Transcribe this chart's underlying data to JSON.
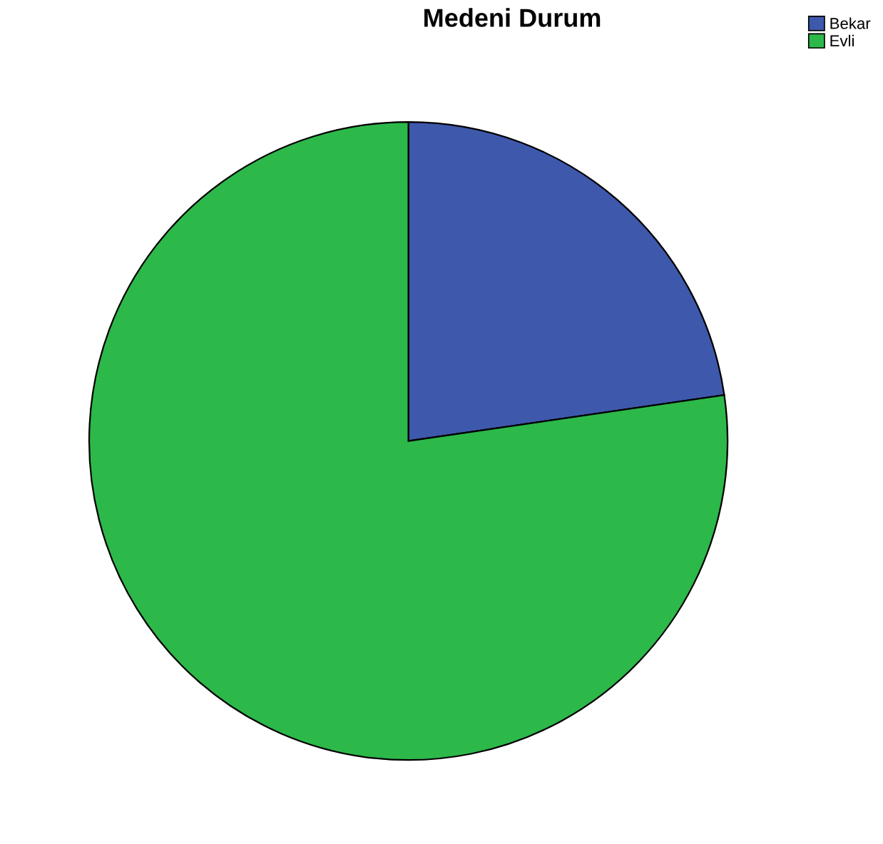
{
  "chart_data": {
    "type": "pie",
    "title": "Medeni Durum",
    "categories": [
      "Bekar",
      "Evli"
    ],
    "values": [
      22.7,
      77.3
    ],
    "colors": [
      "#3e58ac",
      "#2db84a"
    ],
    "legend": "top right"
  }
}
